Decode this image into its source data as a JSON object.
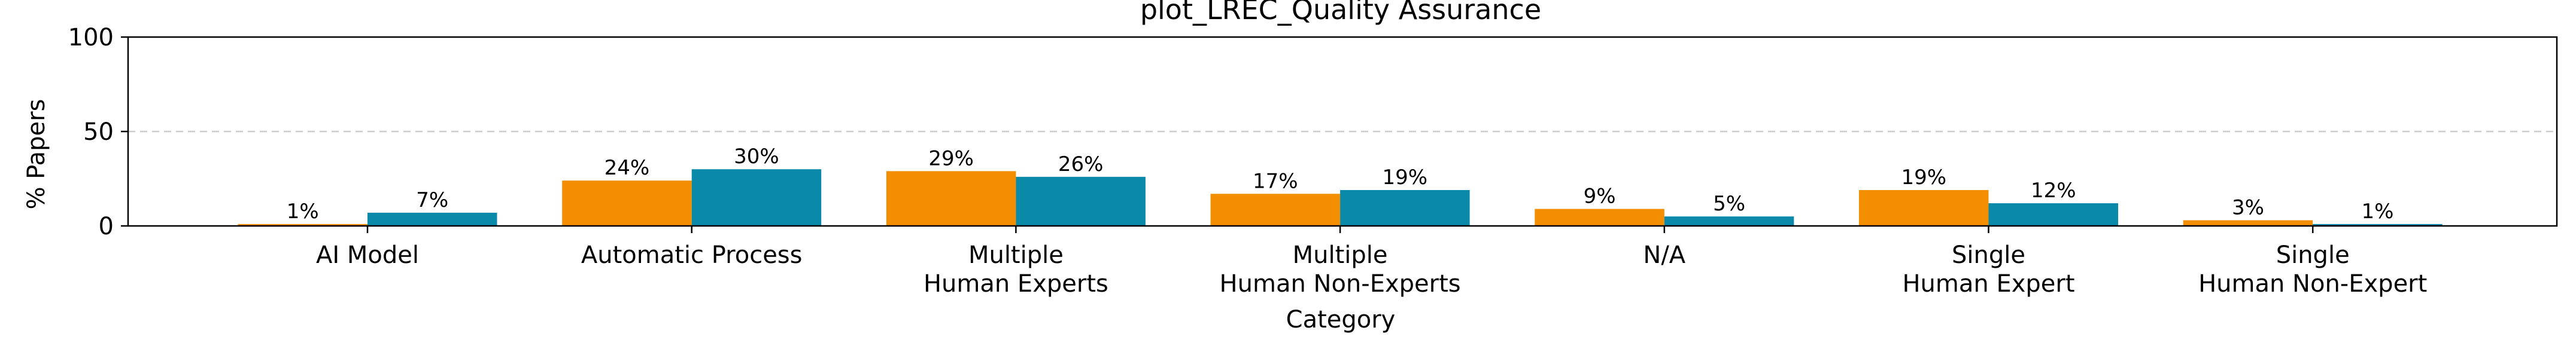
{
  "chart_data": {
    "type": "bar",
    "title": "plot_LREC_Quality Assurance",
    "xlabel": "Category",
    "ylabel": "% Papers",
    "ylim": [
      0,
      100
    ],
    "yticks": [
      0,
      50,
      100
    ],
    "grid": "horizontal dashed at 50",
    "categories": [
      [
        "AI Model"
      ],
      [
        "Automatic Process"
      ],
      [
        "Multiple",
        "Human Experts"
      ],
      [
        "Multiple",
        "Human Non-Experts"
      ],
      [
        "N/A"
      ],
      [
        "Single",
        "Human Expert"
      ],
      [
        "Single",
        "Human Non-Expert"
      ]
    ],
    "series": [
      {
        "color": "#F28E00",
        "values": [
          1,
          24,
          29,
          17,
          9,
          19,
          3
        ],
        "labels": [
          "1%",
          "24%",
          "29%",
          "17%",
          "9%",
          "19%",
          "3%"
        ]
      },
      {
        "color": "#0A89A8",
        "values": [
          7,
          30,
          26,
          19,
          5,
          12,
          1
        ],
        "labels": [
          "7%",
          "30%",
          "26%",
          "19%",
          "5%",
          "12%",
          "1%"
        ]
      }
    ]
  }
}
